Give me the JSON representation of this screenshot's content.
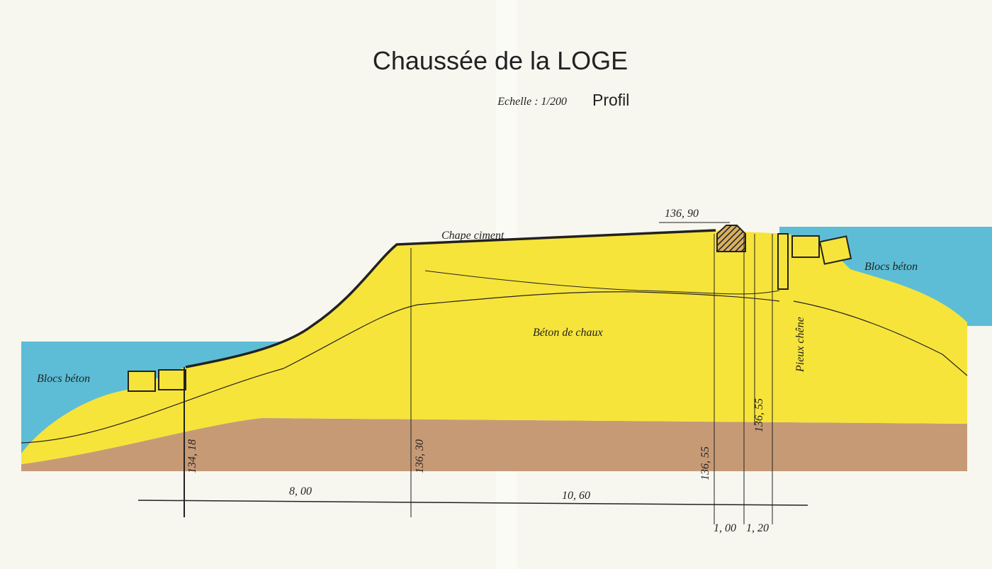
{
  "header": {
    "title": "Chaussée de la LOGE",
    "scale": "Echelle : 1/200",
    "view": "Profil"
  },
  "labels": {
    "cap": "Chape ciment",
    "top_level": "136, 90",
    "blocks_right": "Blocs béton",
    "blocks_left": "Blocs béton",
    "core": "Béton de chaux",
    "piles": "Pieux chêne"
  },
  "levels": [
    "134, 18",
    "136, 30",
    "136, 55",
    "136, 55"
  ],
  "dimensions": [
    "8, 00",
    "10, 60",
    "1, 00",
    "1, 20"
  ]
}
